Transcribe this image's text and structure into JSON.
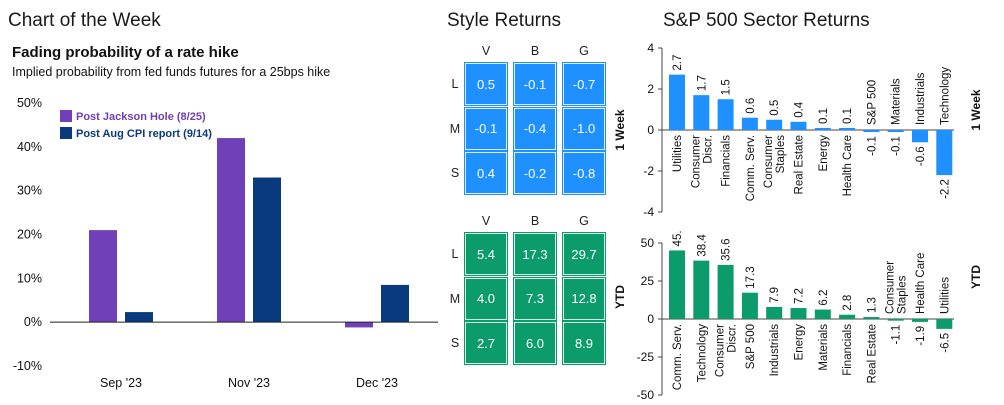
{
  "header": {
    "title": "Chart of the Week"
  },
  "rate_panel": {
    "title": "Fading probability of a rate hike",
    "subtitle": "Implied probability from fed funds futures for a 25bps hike"
  },
  "style_panel": {
    "title": "Style Returns"
  },
  "sector_panel": {
    "title": "S&P 500 Sector Returns",
    "week_label": "1 Week",
    "ytd_label": "YTD"
  },
  "colors": {
    "purple": "#7040B8",
    "navy": "#0A3A7E",
    "blue": "#1E90FF",
    "green": "#0C9B6A"
  },
  "style_returns": {
    "columns": [
      "V",
      "B",
      "G"
    ],
    "rows": [
      "L",
      "M",
      "S"
    ],
    "week": [
      [
        "0.5",
        "-0.1",
        "-0.7"
      ],
      [
        "-0.1",
        "-0.4",
        "-1.0"
      ],
      [
        "0.4",
        "-0.2",
        "-0.8"
      ]
    ],
    "ytd": [
      [
        "5.4",
        "17.3",
        "29.7"
      ],
      [
        "4.0",
        "7.3",
        "12.8"
      ],
      [
        "2.7",
        "6.0",
        "8.9"
      ]
    ]
  },
  "chart_data": [
    {
      "type": "bar",
      "title": "Fading probability of a rate hike",
      "subtitle": "Implied probability from fed funds futures for a 25bps hike",
      "categories": [
        "Sep '23",
        "Nov '23",
        "Dec '23"
      ],
      "series": [
        {
          "name": "Post Jackson Hole (8/25)",
          "color": "#7040B8",
          "values": [
            21,
            42,
            -1.2
          ]
        },
        {
          "name": "Post Aug CPI report (9/14)",
          "color": "#0A3A7E",
          "values": [
            2.3,
            33,
            8.5
          ]
        }
      ],
      "ylim": [
        -10,
        50
      ],
      "yticks": [
        "-10%",
        "0%",
        "10%",
        "20%",
        "30%",
        "40%",
        "50%"
      ],
      "legend": "top-left"
    },
    {
      "type": "bar",
      "title": "S&P 500 Sector Returns",
      "ylabel": "1 Week",
      "color": "#1E90FF",
      "categories": [
        "Utilities",
        "Consumer Discr.",
        "Financials",
        "Comm. Serv.",
        "Consumer Staples",
        "Real Estate",
        "Energy",
        "Health Care",
        "S&P 500",
        "Materials",
        "Industrials",
        "Technology"
      ],
      "values": [
        2.7,
        1.7,
        1.5,
        0.6,
        0.5,
        0.4,
        0.1,
        0.1,
        -0.1,
        -0.1,
        -0.6,
        -2.2
      ],
      "labels": [
        "2.7",
        "1.7",
        "1.5",
        "0.6",
        "0.5",
        "0.4",
        "0.1",
        "0.1",
        "-0.1",
        "-0.1",
        "-0.6",
        "-2.2"
      ],
      "ylim": [
        -4,
        4
      ],
      "yticks": [
        "-4",
        "-2",
        "0",
        "2",
        "4"
      ]
    },
    {
      "type": "bar",
      "ylabel": "YTD",
      "color": "#0C9B6A",
      "categories": [
        "Comm. Serv.",
        "Technology",
        "Consumer Discr.",
        "S&P 500",
        "Industrials",
        "Energy",
        "Materials",
        "Financials",
        "Real Estate",
        "Consumer Staples",
        "Health Care",
        "Utilities"
      ],
      "values": [
        45.1,
        38.4,
        35.6,
        17.3,
        7.9,
        7.2,
        6.2,
        2.8,
        1.3,
        -1.1,
        -1.9,
        -6.5
      ],
      "labels": [
        "45.1",
        "38.4",
        "35.6",
        "17.3",
        "7.9",
        "7.2",
        "6.2",
        "2.8",
        "1.3",
        "-1.1",
        "-1.9",
        "-6.5"
      ],
      "ylim": [
        -50,
        50
      ],
      "yticks": [
        "-50",
        "-25",
        "0",
        "25",
        "50"
      ]
    }
  ]
}
